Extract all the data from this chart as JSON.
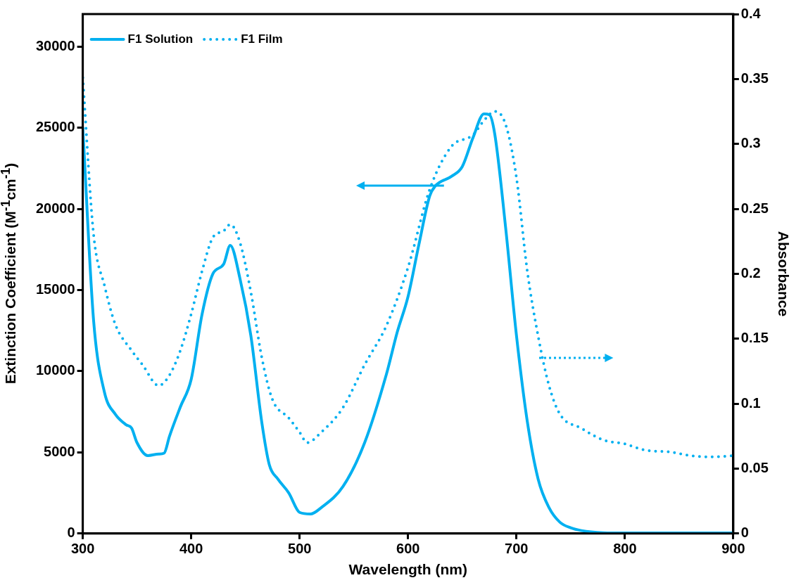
{
  "chart_data": {
    "type": "line",
    "xlabel": "Wavelength (nm)",
    "ylabel": "Extinction Coefficient (M$^{-1}$cm$^{-1}$)",
    "y2label": "Absorbance",
    "xlim": [
      300,
      900
    ],
    "xticks": [
      300,
      400,
      500,
      600,
      700,
      800,
      900
    ],
    "ylim": [
      0,
      32000
    ],
    "yticks": [
      0,
      5000,
      10000,
      15000,
      20000,
      25000,
      30000
    ],
    "y2lim": [
      0,
      0.4
    ],
    "y2ticks": [
      0,
      0.05,
      0.1,
      0.15,
      0.2,
      0.25,
      0.3,
      0.35,
      0.4
    ],
    "legend": "top left",
    "marker": "none",
    "grid": false,
    "series": [
      {
        "name": "F1 Solution",
        "color": "#00b0f0",
        "line_style": "solid",
        "x": [
          300,
          310,
          320,
          330,
          340,
          345,
          350,
          360,
          370,
          375,
          380,
          390,
          400,
          410,
          420,
          430,
          436,
          445,
          455,
          465,
          472,
          480,
          490,
          500,
          510,
          520,
          540,
          560,
          580,
          590,
          600,
          610,
          620,
          625,
          640,
          650,
          660,
          670,
          675,
          680,
          690,
          700,
          710,
          720,
          730,
          740,
          750,
          760,
          780,
          800,
          850,
          900
        ],
        "values": [
          25000,
          13100,
          8700,
          7350,
          6700,
          6500,
          5600,
          4800,
          4900,
          4950,
          6000,
          7800,
          9500,
          13500,
          16000,
          16600,
          17750,
          15700,
          12200,
          6900,
          4250,
          3350,
          2500,
          1300,
          1200,
          1600,
          2900,
          5600,
          9800,
          12400,
          14600,
          17800,
          20800,
          21400,
          22000,
          22600,
          24400,
          25850,
          25800,
          24600,
          18850,
          12200,
          6900,
          3350,
          1600,
          700,
          350,
          180,
          50,
          30,
          30,
          30
        ]
      },
      {
        "name": "F1 Film",
        "color": "#00b0f0",
        "line_style": "dotted",
        "axis": "y2",
        "x": [
          300,
          310,
          320,
          330,
          345,
          355,
          370,
          380,
          390,
          400,
          410,
          420,
          430,
          436,
          445,
          455,
          465,
          475,
          490,
          500,
          507,
          520,
          540,
          560,
          580,
          600,
          620,
          640,
          660,
          670,
          680,
          690,
          700,
          710,
          720,
          730,
          740,
          760,
          780,
          800,
          820,
          840,
          860,
          880,
          900
        ],
        "values": [
          0.351,
          0.23,
          0.191,
          0.161,
          0.141,
          0.13,
          0.114,
          0.122,
          0.141,
          0.169,
          0.202,
          0.228,
          0.233,
          0.238,
          0.224,
          0.186,
          0.136,
          0.103,
          0.089,
          0.078,
          0.07,
          0.078,
          0.097,
          0.13,
          0.16,
          0.205,
          0.265,
          0.298,
          0.307,
          0.318,
          0.325,
          0.315,
          0.274,
          0.202,
          0.152,
          0.114,
          0.092,
          0.081,
          0.072,
          0.069,
          0.064,
          0.063,
          0.06,
          0.059,
          0.06
        ]
      }
    ]
  }
}
